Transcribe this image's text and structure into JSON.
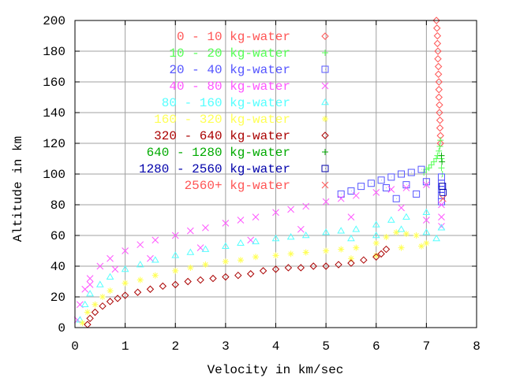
{
  "chart_data": {
    "type": "scatter",
    "title": "",
    "xlabel": "Velocity in km/sec",
    "ylabel": "Altitude in km",
    "xlim": [
      0,
      8
    ],
    "ylim": [
      0,
      200
    ],
    "xticks": [
      "0",
      "1",
      "2",
      "3",
      "4",
      "5",
      "6",
      "7",
      "8"
    ],
    "yticks": [
      "0",
      "20",
      "40",
      "60",
      "80",
      "100",
      "120",
      "140",
      "160",
      "180",
      "200"
    ],
    "grid": true,
    "legend_position": "top-left",
    "series": [
      {
        "name": "0 - 10 kg-water",
        "color": "#ff5555",
        "marker": "diamond",
        "points": [
          [
            7.2,
            200
          ],
          [
            7.21,
            195
          ],
          [
            7.22,
            190
          ],
          [
            7.22,
            185
          ],
          [
            7.23,
            180
          ],
          [
            7.23,
            175
          ],
          [
            7.24,
            170
          ],
          [
            7.24,
            165
          ],
          [
            7.25,
            160
          ],
          [
            7.25,
            155
          ],
          [
            7.25,
            150
          ],
          [
            7.26,
            145
          ],
          [
            7.26,
            140
          ],
          [
            7.27,
            135
          ],
          [
            7.27,
            130
          ],
          [
            7.28,
            125
          ],
          [
            7.28,
            120
          ]
        ]
      },
      {
        "name": "10 - 20 kg-water",
        "color": "#55ff55",
        "marker": "plus",
        "points": [
          [
            7.28,
            122
          ],
          [
            7.27,
            118
          ],
          [
            7.25,
            115
          ],
          [
            7.22,
            112
          ],
          [
            7.2,
            110
          ],
          [
            7.15,
            108
          ],
          [
            7.1,
            106
          ],
          [
            7.05,
            104
          ],
          [
            7.0,
            103
          ],
          [
            6.95,
            101
          ],
          [
            7.3,
            110
          ],
          [
            7.3,
            104
          ],
          [
            7.32,
            100
          ]
        ]
      },
      {
        "name": "20 - 40 kg-water",
        "color": "#5555ff",
        "marker": "box",
        "points": [
          [
            5.3,
            87
          ],
          [
            5.5,
            89
          ],
          [
            5.7,
            92
          ],
          [
            5.9,
            94
          ],
          [
            6.1,
            96
          ],
          [
            6.3,
            98
          ],
          [
            6.5,
            100
          ],
          [
            6.7,
            101
          ],
          [
            6.9,
            103
          ],
          [
            7.3,
            98
          ],
          [
            7.3,
            94
          ],
          [
            7.3,
            90
          ],
          [
            7.3,
            86
          ],
          [
            7.3,
            82
          ],
          [
            6.2,
            91
          ],
          [
            6.6,
            93
          ],
          [
            7.0,
            95
          ],
          [
            6.4,
            84
          ],
          [
            6.8,
            87
          ]
        ]
      },
      {
        "name": "40 - 80 kg-water",
        "color": "#ff55ff",
        "marker": "cross",
        "points": [
          [
            0.05,
            5
          ],
          [
            0.1,
            15
          ],
          [
            0.2,
            25
          ],
          [
            0.3,
            32
          ],
          [
            0.5,
            40
          ],
          [
            0.7,
            45
          ],
          [
            1,
            50
          ],
          [
            1.3,
            54
          ],
          [
            1.6,
            57
          ],
          [
            2,
            60
          ],
          [
            2.3,
            63
          ],
          [
            2.6,
            65
          ],
          [
            3,
            68
          ],
          [
            3.3,
            70
          ],
          [
            3.6,
            72
          ],
          [
            4,
            75
          ],
          [
            4.3,
            77
          ],
          [
            4.6,
            79
          ],
          [
            5,
            82
          ],
          [
            5.3,
            84
          ],
          [
            5.6,
            86
          ],
          [
            6,
            88
          ],
          [
            6.3,
            90
          ],
          [
            6.6,
            91
          ],
          [
            7,
            93
          ],
          [
            7.3,
            80
          ],
          [
            7.3,
            72
          ],
          [
            7.3,
            66
          ],
          [
            0.3,
            28
          ],
          [
            0.8,
            38
          ],
          [
            1.5,
            45
          ],
          [
            2.5,
            52
          ],
          [
            3.5,
            57
          ],
          [
            4.5,
            64
          ],
          [
            5.5,
            72
          ],
          [
            6.5,
            78
          ],
          [
            7.0,
            70
          ]
        ]
      },
      {
        "name": "80 - 160 kg-water",
        "color": "#55ffff",
        "marker": "triangle",
        "points": [
          [
            0.1,
            5
          ],
          [
            0.2,
            15
          ],
          [
            0.3,
            22
          ],
          [
            0.5,
            28
          ],
          [
            0.7,
            33
          ],
          [
            1,
            38
          ],
          [
            1.3,
            41
          ],
          [
            1.6,
            44
          ],
          [
            2,
            47
          ],
          [
            2.3,
            49
          ],
          [
            2.6,
            51
          ],
          [
            3,
            53
          ],
          [
            3.3,
            55
          ],
          [
            3.6,
            56
          ],
          [
            4,
            58
          ],
          [
            4.3,
            59
          ],
          [
            4.6,
            60
          ],
          [
            5,
            62
          ],
          [
            5.3,
            63
          ],
          [
            5.6,
            64
          ],
          [
            6,
            67
          ],
          [
            6.3,
            70
          ],
          [
            6.6,
            72
          ],
          [
            7,
            75
          ],
          [
            7.3,
            65
          ],
          [
            7.2,
            58
          ],
          [
            5.5,
            58
          ],
          [
            6.0,
            60
          ],
          [
            6.5,
            64
          ],
          [
            7.0,
            62
          ]
        ]
      },
      {
        "name": "160 - 320 kg-water",
        "color": "#ffff55",
        "marker": "star",
        "points": [
          [
            0.15,
            3
          ],
          [
            0.25,
            10
          ],
          [
            0.4,
            15
          ],
          [
            0.55,
            20
          ],
          [
            0.7,
            24
          ],
          [
            1,
            29
          ],
          [
            1.3,
            31
          ],
          [
            1.6,
            34
          ],
          [
            2,
            37
          ],
          [
            2.3,
            39
          ],
          [
            2.6,
            41
          ],
          [
            3,
            43
          ],
          [
            3.3,
            44
          ],
          [
            3.6,
            46
          ],
          [
            4,
            47
          ],
          [
            4.3,
            48
          ],
          [
            4.6,
            49
          ],
          [
            5,
            50
          ],
          [
            5.3,
            51
          ],
          [
            5.6,
            52
          ],
          [
            6,
            55
          ],
          [
            6.2,
            59
          ],
          [
            6.4,
            62
          ],
          [
            6.6,
            61
          ],
          [
            6.8,
            60
          ],
          [
            7,
            55
          ],
          [
            5.5,
            45
          ],
          [
            6.0,
            47
          ],
          [
            6.5,
            52
          ],
          [
            6.9,
            53
          ]
        ]
      },
      {
        "name": "320 - 640 kg-water",
        "color": "#aa0000",
        "marker": "diamond",
        "points": [
          [
            0.25,
            2
          ],
          [
            0.3,
            6
          ],
          [
            0.4,
            10
          ],
          [
            0.55,
            14
          ],
          [
            0.7,
            17
          ],
          [
            0.85,
            19
          ],
          [
            1,
            21
          ],
          [
            1.25,
            23
          ],
          [
            1.5,
            25
          ],
          [
            1.75,
            27
          ],
          [
            2,
            28
          ],
          [
            2.25,
            30
          ],
          [
            2.5,
            31
          ],
          [
            2.75,
            32
          ],
          [
            3,
            33
          ],
          [
            3.25,
            34
          ],
          [
            3.5,
            35
          ],
          [
            3.75,
            37
          ],
          [
            4,
            38
          ],
          [
            4.25,
            39
          ],
          [
            4.5,
            39
          ],
          [
            4.75,
            40
          ],
          [
            5,
            40
          ],
          [
            5.25,
            41
          ],
          [
            5.5,
            42
          ],
          [
            5.75,
            44
          ],
          [
            6,
            46
          ],
          [
            6.1,
            48
          ],
          [
            6.2,
            51
          ]
        ]
      },
      {
        "name": "640 - 1280 kg-water",
        "color": "#00aa00",
        "marker": "plus",
        "points": [
          [
            7.3,
            112
          ],
          [
            7.31,
            108
          ]
        ]
      },
      {
        "name": "1280 - 2560 kg-water",
        "color": "#0000aa",
        "marker": "box",
        "points": [
          [
            7.32,
            92
          ],
          [
            7.33,
            88
          ]
        ]
      },
      {
        "name": "2560+ kg-water",
        "color": "#ff5555",
        "marker": "cross",
        "points": [
          [
            7.33,
            84
          ]
        ]
      }
    ]
  }
}
